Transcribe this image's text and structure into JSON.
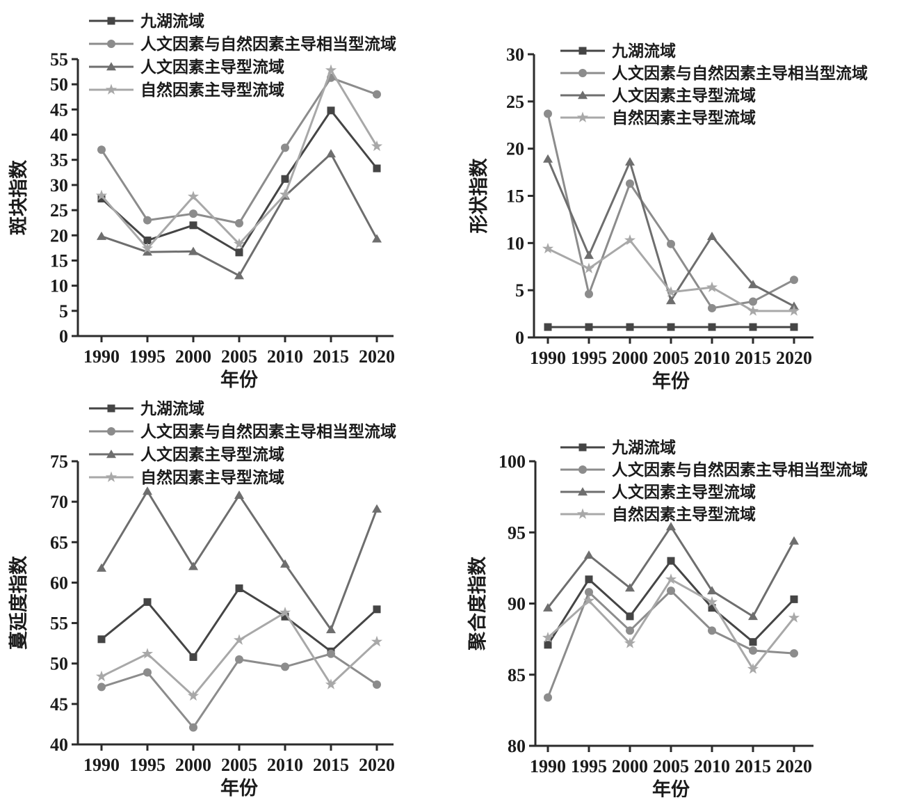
{
  "figure": {
    "background": "#ffffff",
    "axis_color": "#2b2b2b",
    "text_color": "#1b1b1b"
  },
  "chart_data": [
    {
      "type": "line",
      "title": "",
      "xlabel": "年份",
      "ylabel": "斑块指数",
      "ylim": [
        0,
        55
      ],
      "yticks": [
        0,
        5,
        10,
        15,
        20,
        25,
        30,
        35,
        40,
        45,
        50,
        55
      ],
      "categories": [
        "1990",
        "1995",
        "2000",
        "2005",
        "2010",
        "2015",
        "2020"
      ],
      "grid": false,
      "legend_position": "top-left",
      "series": [
        {
          "name": "九湖流域",
          "marker": "square",
          "color": "#454545",
          "values": [
            27.3,
            19.0,
            22.0,
            16.6,
            31.2,
            44.8,
            33.3
          ]
        },
        {
          "name": "人文因素与自然因素主导相当型流域",
          "marker": "circle",
          "color": "#8c8c8c",
          "values": [
            37.0,
            23.0,
            24.3,
            22.4,
            37.4,
            51.3,
            48.0
          ]
        },
        {
          "name": "人文因素主导型流域",
          "marker": "triangle",
          "color": "#6e6e6e",
          "values": [
            19.8,
            16.7,
            16.8,
            12.0,
            27.8,
            36.2,
            19.3
          ]
        },
        {
          "name": "自然因素主导型流域",
          "marker": "star",
          "color": "#a8a8a8",
          "values": [
            27.9,
            17.4,
            27.7,
            18.3,
            28.1,
            52.8,
            37.7
          ]
        }
      ]
    },
    {
      "type": "line",
      "title": "",
      "xlabel": "年份",
      "ylabel": "形状指数",
      "ylim": [
        0,
        30
      ],
      "yticks": [
        0,
        5,
        10,
        15,
        20,
        25,
        30
      ],
      "categories": [
        "1990",
        "1995",
        "2000",
        "2005",
        "2010",
        "2015",
        "2020"
      ],
      "grid": false,
      "legend_position": "top-center",
      "series": [
        {
          "name": "九湖流域",
          "marker": "square",
          "color": "#454545",
          "values": [
            1.1,
            1.1,
            1.1,
            1.1,
            1.1,
            1.1,
            1.1
          ]
        },
        {
          "name": "人文因素与自然因素主导相当型流域",
          "marker": "circle",
          "color": "#8c8c8c",
          "values": [
            23.7,
            4.6,
            16.3,
            9.9,
            3.1,
            3.8,
            6.1
          ]
        },
        {
          "name": "人文因素主导型流域",
          "marker": "triangle",
          "color": "#6e6e6e",
          "values": [
            18.9,
            8.7,
            18.6,
            3.9,
            10.7,
            5.6,
            3.3
          ]
        },
        {
          "name": "自然因素主导型流域",
          "marker": "star",
          "color": "#a8a8a8",
          "values": [
            9.4,
            7.3,
            10.3,
            4.8,
            5.3,
            2.8,
            2.8
          ]
        }
      ]
    },
    {
      "type": "line",
      "title": "",
      "xlabel": "年份",
      "ylabel": "蔓延度指数",
      "ylim": [
        40,
        75
      ],
      "yticks": [
        40,
        45,
        50,
        55,
        60,
        65,
        70,
        75
      ],
      "categories": [
        "1990",
        "1995",
        "2000",
        "2005",
        "2010",
        "2015",
        "2020"
      ],
      "grid": false,
      "legend_position": "top-left",
      "series": [
        {
          "name": "九湖流域",
          "marker": "square",
          "color": "#454545",
          "values": [
            53.0,
            57.6,
            50.8,
            59.3,
            55.8,
            51.5,
            56.7
          ]
        },
        {
          "name": "人文因素与自然因素主导相当型流域",
          "marker": "circle",
          "color": "#8c8c8c",
          "values": [
            47.1,
            48.9,
            42.1,
            50.5,
            49.6,
            51.2,
            47.4
          ]
        },
        {
          "name": "人文因素主导型流域",
          "marker": "triangle",
          "color": "#6e6e6e",
          "values": [
            61.8,
            71.3,
            62.0,
            70.8,
            62.3,
            54.2,
            69.1
          ]
        },
        {
          "name": "自然因素主导型流域",
          "marker": "star",
          "color": "#a8a8a8",
          "values": [
            48.4,
            51.2,
            46.0,
            52.9,
            56.3,
            47.4,
            52.7
          ]
        }
      ]
    },
    {
      "type": "line",
      "title": "",
      "xlabel": "年份",
      "ylabel": "聚合度指数",
      "ylim": [
        80,
        100
      ],
      "yticks": [
        80,
        85,
        90,
        95,
        100
      ],
      "categories": [
        "1990",
        "1995",
        "2000",
        "2005",
        "2010",
        "2015",
        "2020"
      ],
      "grid": false,
      "legend_position": "top-center",
      "series": [
        {
          "name": "九湖流域",
          "marker": "square",
          "color": "#454545",
          "values": [
            87.1,
            91.7,
            89.1,
            93.0,
            89.7,
            87.3,
            90.3
          ]
        },
        {
          "name": "人文因素与自然因素主导相当型流域",
          "marker": "circle",
          "color": "#8c8c8c",
          "values": [
            83.4,
            90.8,
            88.1,
            90.9,
            88.1,
            86.7,
            86.5
          ]
        },
        {
          "name": "人文因素主导型流域",
          "marker": "triangle",
          "color": "#6e6e6e",
          "values": [
            89.7,
            93.4,
            91.1,
            95.4,
            90.9,
            89.1,
            94.4
          ]
        },
        {
          "name": "自然因素主导型流域",
          "marker": "star",
          "color": "#a8a8a8",
          "values": [
            87.6,
            90.2,
            87.2,
            91.7,
            90.1,
            85.4,
            89.0
          ]
        }
      ]
    }
  ]
}
